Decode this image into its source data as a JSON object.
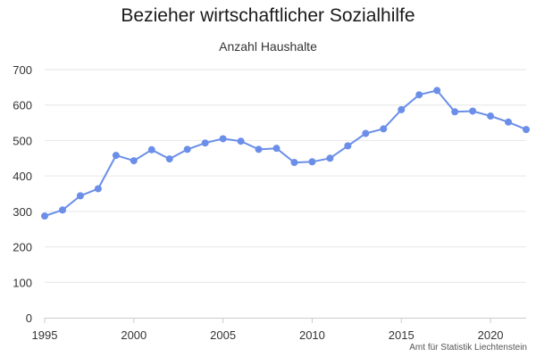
{
  "chart_data": {
    "type": "line",
    "title": "Bezieher wirtschaftlicher Sozialhilfe",
    "subtitle": "Anzahl Haushalte",
    "xlabel": "",
    "ylabel": "",
    "ylim": [
      0,
      700
    ],
    "xlim": [
      1995,
      2022
    ],
    "y_ticks": [
      0,
      100,
      200,
      300,
      400,
      500,
      600,
      700
    ],
    "x_ticks": [
      1995,
      2000,
      2005,
      2010,
      2015,
      2020
    ],
    "grid": "horizontal",
    "legend": "none",
    "series": [
      {
        "color": "#6b8fe8",
        "x": [
          1995,
          1996,
          1997,
          1998,
          1999,
          2000,
          2001,
          2002,
          2003,
          2004,
          2005,
          2006,
          2007,
          2008,
          2009,
          2010,
          2011,
          2012,
          2013,
          2014,
          2015,
          2016,
          2017,
          2018,
          2019,
          2020,
          2021,
          2022
        ],
        "values": [
          287,
          304,
          344,
          364,
          458,
          443,
          474,
          448,
          475,
          493,
          505,
          498,
          475,
          478,
          438,
          440,
          450,
          485,
          520,
          533,
          587,
          629,
          641,
          581,
          583,
          569,
          552,
          531
        ]
      }
    ],
    "credit": "Amt für Statistik Liechtenstein"
  }
}
